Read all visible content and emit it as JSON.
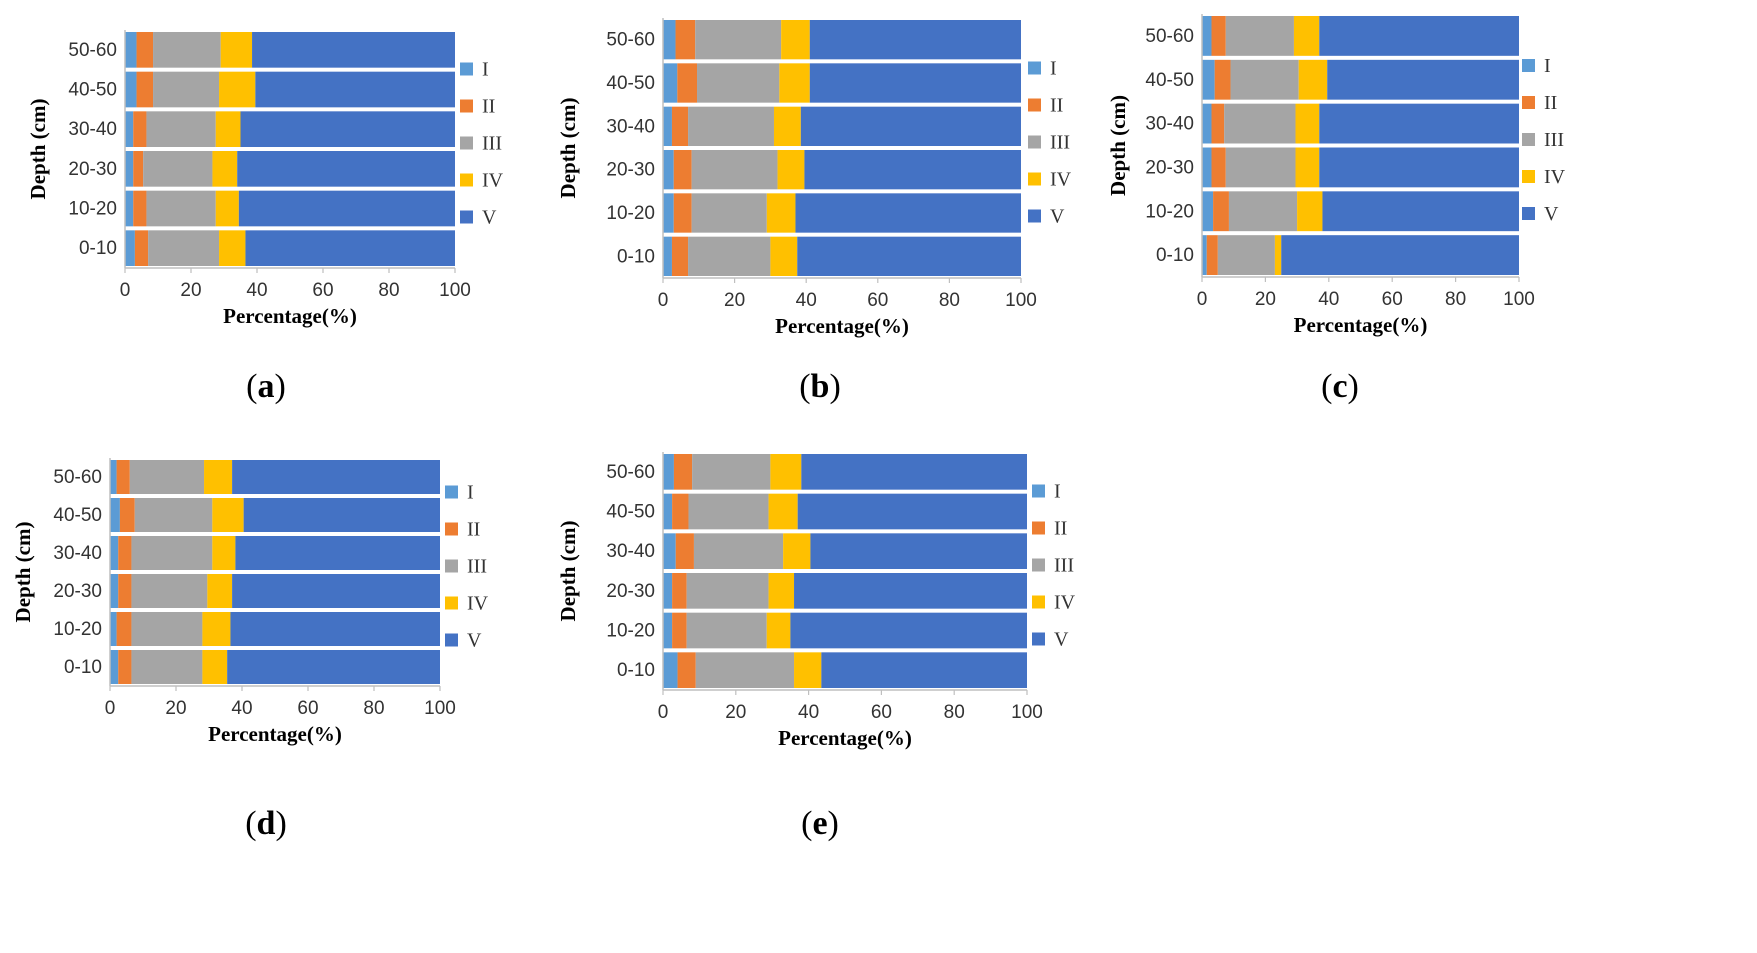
{
  "chart_data": [
    {
      "type": "bar",
      "orientation": "horizontal",
      "stacked": true,
      "panel_label": "a",
      "xlabel": "Percentage(%)",
      "ylabel": "Depth (cm)",
      "xlim": [
        0,
        100
      ],
      "xticks": [
        "0",
        "20",
        "40",
        "60",
        "80",
        "100"
      ],
      "categories": [
        "0-10",
        "10-20",
        "20-30",
        "30-40",
        "40-50",
        "50-60"
      ],
      "legend": [
        "I",
        "II",
        "III",
        "IV",
        "V"
      ],
      "series": [
        {
          "name": "I",
          "values": [
            3,
            2.5,
            2.5,
            2.5,
            3.5,
            3.5
          ]
        },
        {
          "name": "II",
          "values": [
            4,
            4,
            3,
            4,
            5,
            5
          ]
        },
        {
          "name": "III",
          "values": [
            21.5,
            21,
            21,
            21,
            20,
            20.5
          ]
        },
        {
          "name": "IV",
          "values": [
            8,
            7,
            7.5,
            7.5,
            11,
            9.5
          ]
        },
        {
          "name": "V",
          "values": [
            63.5,
            65.5,
            66,
            65,
            60.5,
            61.5
          ]
        }
      ]
    },
    {
      "type": "bar",
      "orientation": "horizontal",
      "stacked": true,
      "panel_label": "b",
      "xlabel": "Percentage(%)",
      "ylabel": "Depth (cm)",
      "xlim": [
        0,
        100
      ],
      "xticks": [
        "0",
        "20",
        "40",
        "60",
        "80",
        "100"
      ],
      "categories": [
        "0-10",
        "10-20",
        "20-30",
        "30-40",
        "40-50",
        "50-60"
      ],
      "legend": [
        "I",
        "II",
        "III",
        "IV",
        "V"
      ],
      "series": [
        {
          "name": "I",
          "values": [
            2.5,
            3,
            3,
            2.5,
            4,
            3.5
          ]
        },
        {
          "name": "II",
          "values": [
            4.5,
            5,
            5,
            4.5,
            5.5,
            5.5
          ]
        },
        {
          "name": "III",
          "values": [
            23,
            21,
            24,
            24,
            23,
            24
          ]
        },
        {
          "name": "IV",
          "values": [
            7.5,
            8,
            7.5,
            7.5,
            8.5,
            8
          ]
        },
        {
          "name": "V",
          "values": [
            62.5,
            63,
            60.5,
            61.5,
            59,
            59
          ]
        }
      ]
    },
    {
      "type": "bar",
      "orientation": "horizontal",
      "stacked": true,
      "panel_label": "c",
      "xlabel": "Percentage(%)",
      "ylabel": "Depth (cm)",
      "xlim": [
        0,
        100
      ],
      "xticks": [
        "0",
        "20",
        "40",
        "60",
        "80",
        "100"
      ],
      "categories": [
        "0-10",
        "10-20",
        "20-30",
        "30-40",
        "40-50",
        "50-60"
      ],
      "legend": [
        "I",
        "II",
        "III",
        "IV",
        "V"
      ],
      "series": [
        {
          "name": "I",
          "values": [
            1.5,
            3.5,
            3,
            3,
            4,
            3
          ]
        },
        {
          "name": "II",
          "values": [
            3.5,
            5,
            4.5,
            4,
            5,
            4.5
          ]
        },
        {
          "name": "III",
          "values": [
            18,
            21.5,
            22,
            22.5,
            21.5,
            21.5
          ]
        },
        {
          "name": "IV",
          "values": [
            2,
            8,
            7.5,
            7.5,
            9,
            8
          ]
        },
        {
          "name": "V",
          "values": [
            75,
            62,
            63,
            63,
            60.5,
            63
          ]
        }
      ]
    },
    {
      "type": "bar",
      "orientation": "horizontal",
      "stacked": true,
      "panel_label": "d",
      "xlabel": "Percentage(%)",
      "ylabel": "Depth (cm)",
      "xlim": [
        0,
        100
      ],
      "xticks": [
        "0",
        "20",
        "40",
        "60",
        "80",
        "100"
      ],
      "categories": [
        "0-10",
        "10-20",
        "20-30",
        "30-40",
        "40-50",
        "50-60"
      ],
      "legend": [
        "I",
        "II",
        "III",
        "IV",
        "V"
      ],
      "series": [
        {
          "name": "I",
          "values": [
            2.5,
            2,
            2.5,
            2.5,
            3,
            2
          ]
        },
        {
          "name": "II",
          "values": [
            4,
            4.5,
            4,
            4,
            4.5,
            4
          ]
        },
        {
          "name": "III",
          "values": [
            21.5,
            21.5,
            23,
            24.5,
            23.5,
            22.5
          ]
        },
        {
          "name": "IV",
          "values": [
            7.5,
            8.5,
            7.5,
            7,
            9.5,
            8.5
          ]
        },
        {
          "name": "V",
          "values": [
            64.5,
            63.5,
            63,
            62,
            59.5,
            63
          ]
        }
      ]
    },
    {
      "type": "bar",
      "orientation": "horizontal",
      "stacked": true,
      "panel_label": "e",
      "xlabel": "Percentage(%)",
      "ylabel": "Depth (cm)",
      "xlim": [
        0,
        100
      ],
      "xticks": [
        "0",
        "20",
        "40",
        "60",
        "80",
        "100"
      ],
      "categories": [
        "0-10",
        "10-20",
        "20-30",
        "30-40",
        "40-50",
        "50-60"
      ],
      "legend": [
        "I",
        "II",
        "III",
        "IV",
        "V"
      ],
      "series": [
        {
          "name": "I",
          "values": [
            4,
            2.5,
            2.5,
            3.5,
            2.5,
            3
          ]
        },
        {
          "name": "II",
          "values": [
            5,
            4,
            4,
            5,
            4.5,
            5
          ]
        },
        {
          "name": "III",
          "values": [
            27,
            22,
            22.5,
            24.5,
            22,
            21.5
          ]
        },
        {
          "name": "IV",
          "values": [
            7.5,
            6.5,
            7,
            7.5,
            8,
            8.5
          ]
        },
        {
          "name": "V",
          "values": [
            56.5,
            65,
            64,
            59.5,
            63,
            62
          ]
        }
      ]
    }
  ],
  "colors": {
    "I": "#5b9bd5",
    "II": "#ed7d31",
    "III": "#a5a5a5",
    "IV": "#ffc000",
    "V": "#4472c4",
    "axis": "#bfbfbf"
  }
}
